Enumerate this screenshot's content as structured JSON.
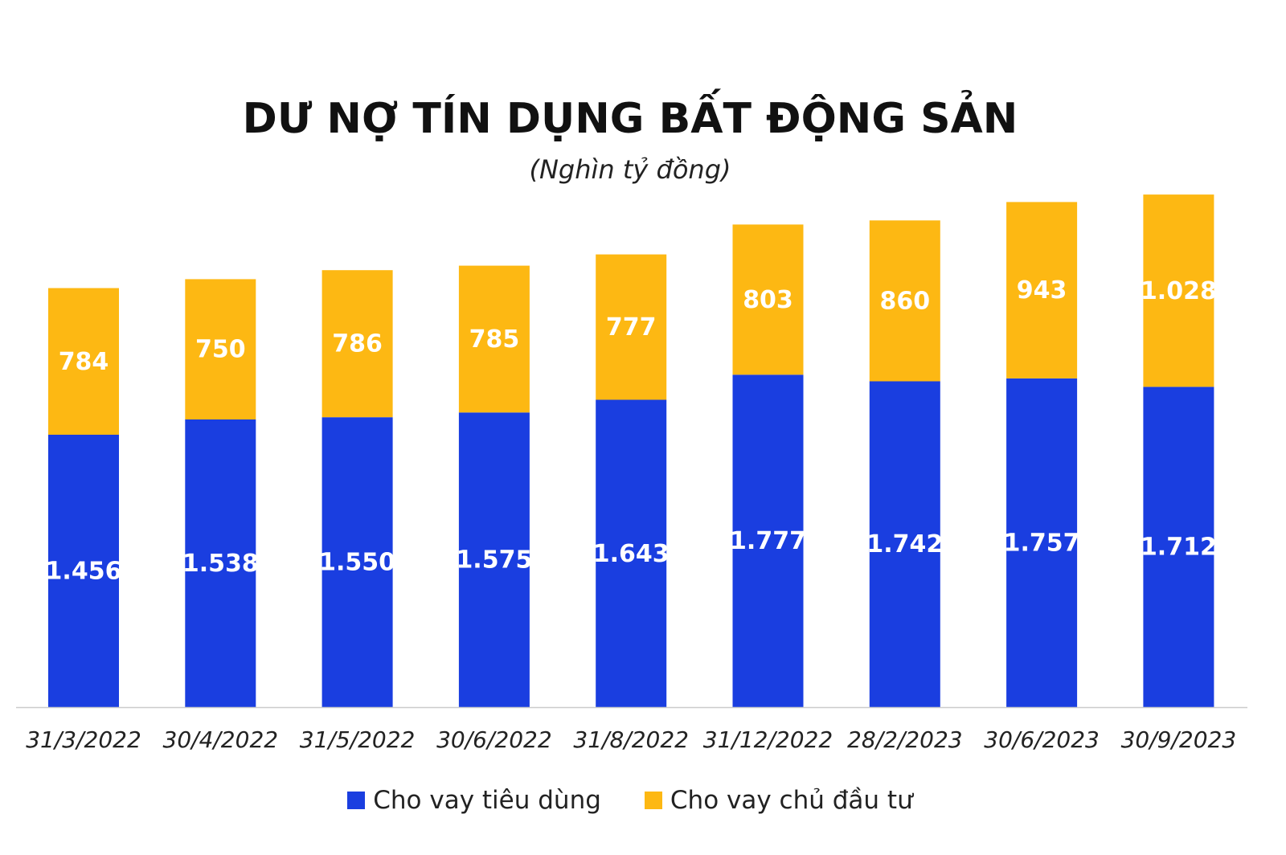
{
  "colors": {
    "consumer": "#1a3ee0",
    "developer": "#fdb813",
    "axis": "#cccccc"
  },
  "chart_data": {
    "type": "bar",
    "stacked": true,
    "title": "DƯ NỢ TÍN DỤNG BẤT ĐỘNG SẢN",
    "subtitle": "(Nghìn tỷ đồng)",
    "categories": [
      "31/3/2022",
      "30/4/2022",
      "31/5/2022",
      "30/6/2022",
      "31/8/2022",
      "31/12/2022",
      "28/2/2023",
      "30/6/2023",
      "30/9/2023"
    ],
    "series": [
      {
        "name": "Cho vay tiêu dùng",
        "values": [
          1456,
          1538,
          1550,
          1575,
          1643,
          1777,
          1742,
          1757,
          1712
        ],
        "labels": [
          "1.456",
          "1.538",
          "1.550",
          "1.575",
          "1.643",
          "1.777",
          "1.742",
          "1.757",
          "1.712"
        ]
      },
      {
        "name": "Cho vay chủ đầu tư",
        "values": [
          784,
          750,
          786,
          785,
          777,
          803,
          860,
          943,
          1028
        ],
        "labels": [
          "784",
          "750",
          "786",
          "785",
          "777",
          "803",
          "860",
          "943",
          "1.028"
        ]
      }
    ],
    "ylim": [
      0,
      2800
    ],
    "grid": false,
    "legend_position": "bottom"
  }
}
